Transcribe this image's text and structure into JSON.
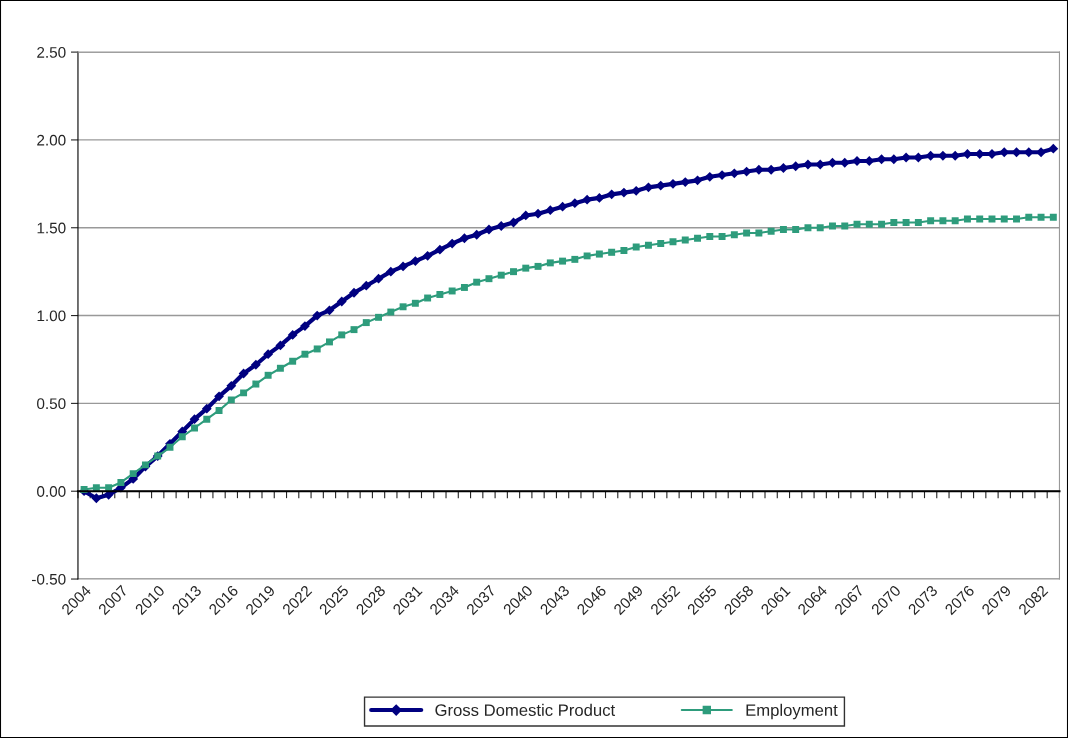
{
  "chart_data": {
    "type": "line",
    "categories": [
      "2004",
      null,
      null,
      "2007",
      null,
      null,
      "2010",
      null,
      null,
      "2013",
      null,
      null,
      "2016",
      null,
      null,
      "2019",
      null,
      null,
      "2022",
      null,
      null,
      "2025",
      null,
      null,
      "2028",
      null,
      null,
      "2031",
      null,
      null,
      "2034",
      null,
      null,
      "2037",
      null,
      null,
      "2040",
      null,
      null,
      "2043",
      null,
      null,
      "2046",
      null,
      null,
      "2049",
      null,
      null,
      "2052",
      null,
      null,
      "2055",
      null,
      null,
      "2058",
      null,
      null,
      "2061",
      null,
      null,
      "2064",
      null,
      null,
      "2067",
      null,
      null,
      "2070",
      null,
      null,
      "2073",
      null,
      null,
      "2076",
      null,
      null,
      "2079",
      null,
      null,
      "2082",
      null
    ],
    "series": [
      {
        "name": "Gross Domestic Product",
        "color": "#000080",
        "marker": "diamond",
        "values": [
          0.0,
          -0.04,
          -0.02,
          0.02,
          0.07,
          0.14,
          0.2,
          0.27,
          0.34,
          0.41,
          0.47,
          0.54,
          0.6,
          0.67,
          0.72,
          0.78,
          0.83,
          0.89,
          0.94,
          1.0,
          1.03,
          1.08,
          1.13,
          1.17,
          1.21,
          1.25,
          1.28,
          1.31,
          1.34,
          1.375,
          1.41,
          1.44,
          1.46,
          1.49,
          1.51,
          1.53,
          1.57,
          1.58,
          1.6,
          1.62,
          1.64,
          1.66,
          1.67,
          1.69,
          1.7,
          1.71,
          1.73,
          1.74,
          1.75,
          1.76,
          1.77,
          1.79,
          1.8,
          1.81,
          1.82,
          1.83,
          1.83,
          1.84,
          1.85,
          1.86,
          1.86,
          1.87,
          1.87,
          1.88,
          1.88,
          1.89,
          1.89,
          1.9,
          1.9,
          1.91,
          1.91,
          1.91,
          1.92,
          1.92,
          1.92,
          1.93,
          1.93,
          1.93,
          1.93,
          1.95
        ]
      },
      {
        "name": "Employment",
        "color": "#2e9c7c",
        "marker": "square",
        "values": [
          0.01,
          0.02,
          0.02,
          0.05,
          0.1,
          0.15,
          0.2,
          0.25,
          0.31,
          0.36,
          0.41,
          0.46,
          0.52,
          0.56,
          0.61,
          0.66,
          0.7,
          0.74,
          0.78,
          0.81,
          0.85,
          0.89,
          0.92,
          0.96,
          0.99,
          1.02,
          1.05,
          1.07,
          1.1,
          1.12,
          1.14,
          1.16,
          1.19,
          1.21,
          1.23,
          1.25,
          1.27,
          1.28,
          1.3,
          1.31,
          1.32,
          1.34,
          1.35,
          1.36,
          1.37,
          1.39,
          1.4,
          1.41,
          1.42,
          1.43,
          1.44,
          1.45,
          1.45,
          1.46,
          1.47,
          1.47,
          1.48,
          1.49,
          1.49,
          1.5,
          1.5,
          1.51,
          1.51,
          1.52,
          1.52,
          1.52,
          1.53,
          1.53,
          1.53,
          1.54,
          1.54,
          1.54,
          1.55,
          1.55,
          1.55,
          1.55,
          1.55,
          1.56,
          1.56,
          1.56
        ]
      }
    ],
    "ylim": [
      -0.5,
      2.5
    ],
    "yticks": [
      {
        "value": -0.5,
        "label": "-0.50"
      },
      {
        "value": 0,
        "label": "0.00"
      },
      {
        "value": 0.5,
        "label": "0.50"
      },
      {
        "value": 1.0,
        "label": "1.00"
      },
      {
        "value": 1.5,
        "label": "1.50"
      },
      {
        "value": 2.0,
        "label": "2.00"
      },
      {
        "value": 2.5,
        "label": "2.50"
      }
    ],
    "grid": "y",
    "legend": "bottom"
  }
}
